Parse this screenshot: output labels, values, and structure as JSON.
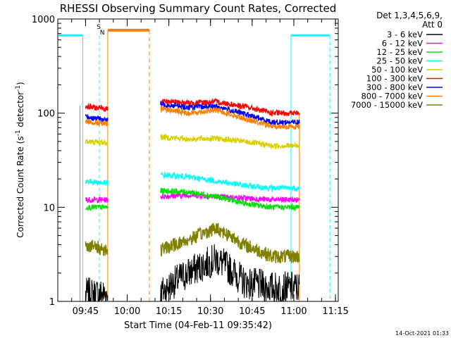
{
  "chart_data": {
    "type": "line",
    "title": "RHESSI Observing Summary Count Rates, Corrected",
    "xlabel": "Start Time (04-Feb-11 09:35:42)",
    "ylabel_parts": [
      "Corrected Count Rate (s",
      "-1",
      " detector",
      "-1",
      ")"
    ],
    "y_scale": "log",
    "ylim": [
      1,
      1000
    ],
    "yticks": [
      {
        "v": 1,
        "label": "1"
      },
      {
        "v": 10,
        "label": "10"
      },
      {
        "v": 100,
        "label": "100"
      },
      {
        "v": 1000,
        "label": "1000"
      }
    ],
    "xlim": [
      "09:35:42",
      "11:16:00"
    ],
    "xticks": [
      "09:45",
      "10:00",
      "10:15",
      "10:30",
      "10:45",
      "11:00",
      "11:15"
    ],
    "header": {
      "line1": "Det 1,3,4,5,6,9,",
      "line2": "Att 0"
    },
    "legend_position": "right",
    "series": [
      {
        "name": "3 - 6 keV",
        "color": "#000000",
        "values": [
          [
            0,
            1.5
          ],
          [
            0,
            1.5
          ],
          [
            1.2,
            2.0
          ],
          [
            2.0,
            2.2
          ],
          [
            2.8,
            2.0
          ],
          [
            1.6,
            1.8
          ],
          [
            1.4,
            1.6
          ],
          [
            1.4,
            1.5
          ]
        ]
      },
      {
        "name": "6 - 12 keV",
        "color": "#ff00ff",
        "values": [
          [
            12,
            12
          ],
          [
            12,
            12
          ],
          [
            13,
            13
          ],
          [
            13.5,
            13.5
          ],
          [
            13,
            13
          ],
          [
            12.5,
            12.5
          ],
          [
            12,
            12
          ],
          [
            12,
            12
          ]
        ]
      },
      {
        "name": "12 - 25 keV",
        "color": "#00e000",
        "values": [
          [
            10,
            10
          ],
          [
            10,
            10
          ],
          [
            15,
            15
          ],
          [
            14.5,
            14.5
          ],
          [
            13,
            13
          ],
          [
            11,
            11
          ],
          [
            10,
            10
          ],
          [
            10,
            10
          ]
        ]
      },
      {
        "name": "25 - 50 keV",
        "color": "#00ffff",
        "values": [
          [
            19,
            19
          ],
          [
            18,
            18
          ],
          [
            22,
            22
          ],
          [
            21,
            21
          ],
          [
            19,
            19
          ],
          [
            17,
            17
          ],
          [
            16,
            16
          ],
          [
            16,
            16
          ]
        ]
      },
      {
        "name": "50 - 100 keV",
        "color": "#d8d000",
        "values": [
          [
            50,
            50
          ],
          [
            48,
            48
          ],
          [
            56,
            56
          ],
          [
            53,
            53
          ],
          [
            54,
            54
          ],
          [
            50,
            50
          ],
          [
            45,
            45
          ],
          [
            45,
            45
          ]
        ]
      },
      {
        "name": "100 - 300 keV",
        "color": "#ff0000",
        "values": [
          [
            118,
            118
          ],
          [
            110,
            110
          ],
          [
            135,
            135
          ],
          [
            128,
            128
          ],
          [
            132,
            132
          ],
          [
            118,
            118
          ],
          [
            100,
            100
          ],
          [
            100,
            100
          ]
        ]
      },
      {
        "name": "300 - 800 keV",
        "color": "#0000ff",
        "values": [
          [
            92,
            92
          ],
          [
            84,
            84
          ],
          [
            125,
            125
          ],
          [
            115,
            115
          ],
          [
            118,
            118
          ],
          [
            98,
            98
          ],
          [
            80,
            80
          ],
          [
            80,
            80
          ]
        ]
      },
      {
        "name": "800 - 7000 keV",
        "color": "#ff8000",
        "values": [
          [
            82,
            82
          ],
          [
            76,
            76
          ],
          [
            112,
            112
          ],
          [
            100,
            100
          ],
          [
            108,
            108
          ],
          [
            88,
            88
          ],
          [
            72,
            72
          ],
          [
            72,
            72
          ]
        ]
      },
      {
        "name": "7000 - 15000 keV",
        "color": "#808000",
        "values": [
          [
            4,
            4
          ],
          [
            3.5,
            3.5
          ],
          [
            3.5,
            3.5
          ],
          [
            4.5,
            4.5
          ],
          [
            6,
            6
          ],
          [
            4.0,
            4.0
          ],
          [
            3.0,
            3.0
          ],
          [
            3.0,
            3.0
          ]
        ]
      }
    ],
    "flags": {
      "s_label": "S",
      "n_label": "N"
    },
    "footer": "14-Oct-2021 01:33"
  }
}
